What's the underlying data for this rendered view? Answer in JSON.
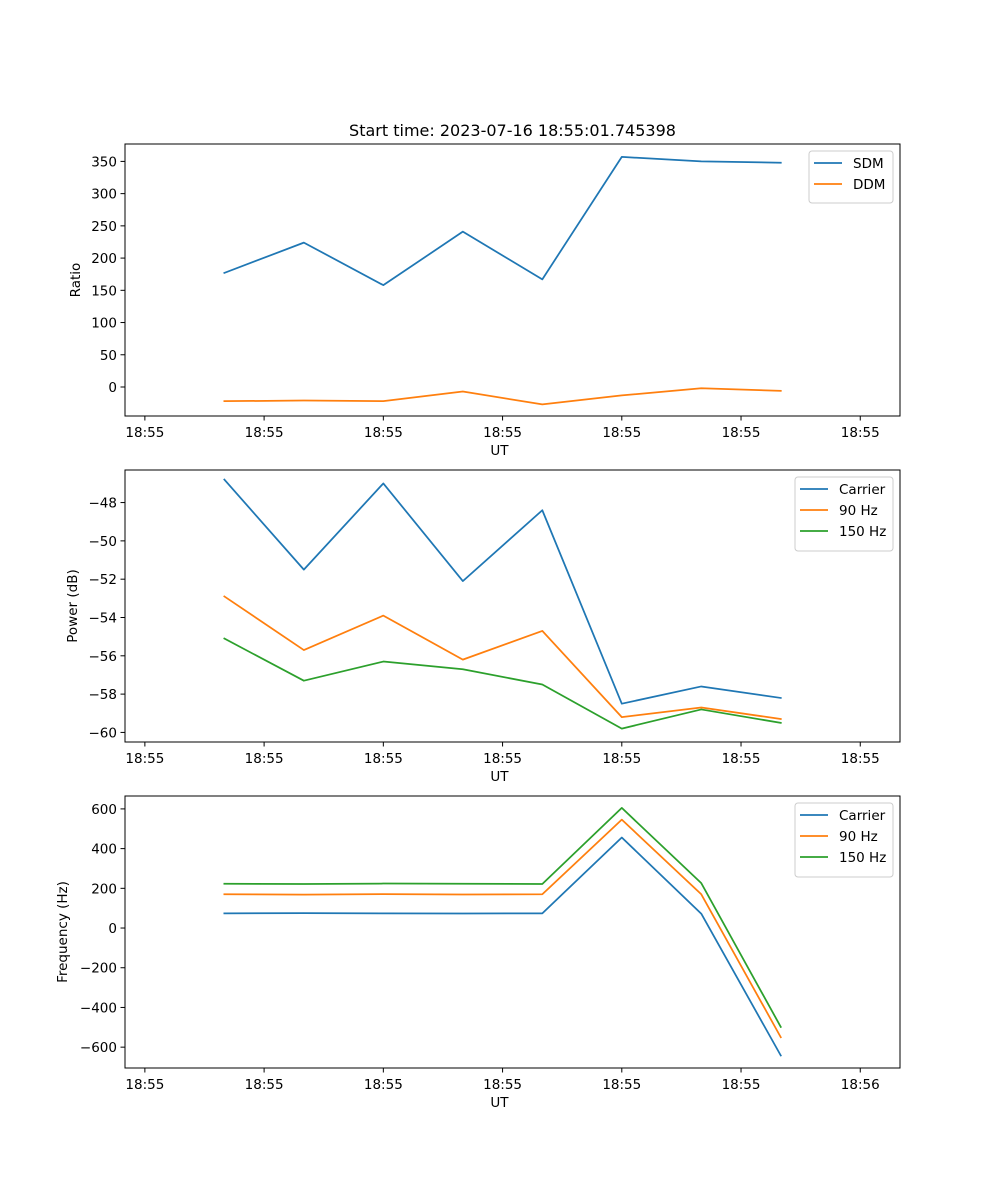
{
  "chart_data": [
    {
      "type": "line",
      "title": "Start time: 2023-07-16 18:55:01.745398",
      "xlabel": "UT",
      "ylabel": "Ratio",
      "x": [
        0.4,
        0.8,
        1.2,
        1.6,
        2.0,
        2.4,
        2.8,
        3.2
      ],
      "xlim": [
        -0.1,
        3.8
      ],
      "xticks": [
        0,
        0.6,
        1.2,
        1.8,
        2.4,
        3.0,
        3.6
      ],
      "xtick_labels": [
        "18:55",
        "18:55",
        "18:55",
        "18:55",
        "18:55",
        "18:55",
        "18:55"
      ],
      "ylim": [
        -45,
        377
      ],
      "yticks": [
        0,
        50,
        100,
        150,
        200,
        250,
        300,
        350
      ],
      "ytick_labels": [
        "0",
        "50",
        "100",
        "150",
        "200",
        "250",
        "300",
        "350"
      ],
      "legend": "top-right",
      "series": [
        {
          "name": "SDM",
          "color": "#1f77b4",
          "values": [
            177,
            224,
            158,
            241,
            167,
            357,
            350,
            348
          ]
        },
        {
          "name": "DDM",
          "color": "#ff7f0e",
          "values": [
            -22,
            -21,
            -22,
            -7,
            -27,
            -13,
            -2,
            -6
          ]
        }
      ]
    },
    {
      "type": "line",
      "title": "",
      "xlabel": "UT",
      "ylabel": "Power (dB)",
      "x": [
        0.4,
        0.8,
        1.2,
        1.6,
        2.0,
        2.4,
        2.8,
        3.2
      ],
      "xlim": [
        -0.1,
        3.8
      ],
      "xticks": [
        0,
        0.6,
        1.2,
        1.8,
        2.4,
        3.0,
        3.6
      ],
      "xtick_labels": [
        "18:55",
        "18:55",
        "18:55",
        "18:55",
        "18:55",
        "18:55",
        "18:55"
      ],
      "ylim": [
        -60.5,
        -46.3
      ],
      "yticks": [
        -60,
        -58,
        -56,
        -54,
        -52,
        -50,
        -48
      ],
      "ytick_labels": [
        "−60",
        "−58",
        "−56",
        "−54",
        "−52",
        "−50",
        "−48"
      ],
      "legend": "top-right",
      "series": [
        {
          "name": "Carrier",
          "color": "#1f77b4",
          "values": [
            -46.8,
            -51.5,
            -47.0,
            -52.1,
            -48.4,
            -58.5,
            -57.6,
            -58.2
          ]
        },
        {
          "name": "90 Hz",
          "color": "#ff7f0e",
          "values": [
            -52.9,
            -55.7,
            -53.9,
            -56.2,
            -54.7,
            -59.2,
            -58.7,
            -59.3
          ]
        },
        {
          "name": "150 Hz",
          "color": "#2ca02c",
          "values": [
            -55.1,
            -57.3,
            -56.3,
            -56.7,
            -57.5,
            -59.8,
            -58.8,
            -59.5
          ]
        }
      ]
    },
    {
      "type": "line",
      "title": "",
      "xlabel": "UT",
      "ylabel": "Frequency (Hz)",
      "x": [
        0.4,
        0.8,
        1.2,
        1.6,
        2.0,
        2.4,
        2.8,
        3.2
      ],
      "xlim": [
        -0.1,
        3.8
      ],
      "xticks": [
        0,
        0.6,
        1.2,
        1.8,
        2.4,
        3.0,
        3.6
      ],
      "xtick_labels": [
        "18:55",
        "18:55",
        "18:55",
        "18:55",
        "18:55",
        "18:55",
        "18:56"
      ],
      "ylim": [
        -705,
        665
      ],
      "yticks": [
        -600,
        -400,
        -200,
        0,
        200,
        400,
        600
      ],
      "ytick_labels": [
        "−600",
        "−400",
        "−200",
        "0",
        "200",
        "400",
        "600"
      ],
      "legend": "top-right",
      "series": [
        {
          "name": "Carrier",
          "color": "#1f77b4",
          "values": [
            74,
            75,
            74,
            73,
            74,
            456,
            72,
            -642
          ]
        },
        {
          "name": "90 Hz",
          "color": "#ff7f0e",
          "values": [
            170,
            168,
            171,
            169,
            170,
            546,
            170,
            -550
          ]
        },
        {
          "name": "150 Hz",
          "color": "#2ca02c",
          "values": [
            223,
            222,
            224,
            223,
            222,
            605,
            226,
            -498
          ]
        }
      ]
    }
  ]
}
